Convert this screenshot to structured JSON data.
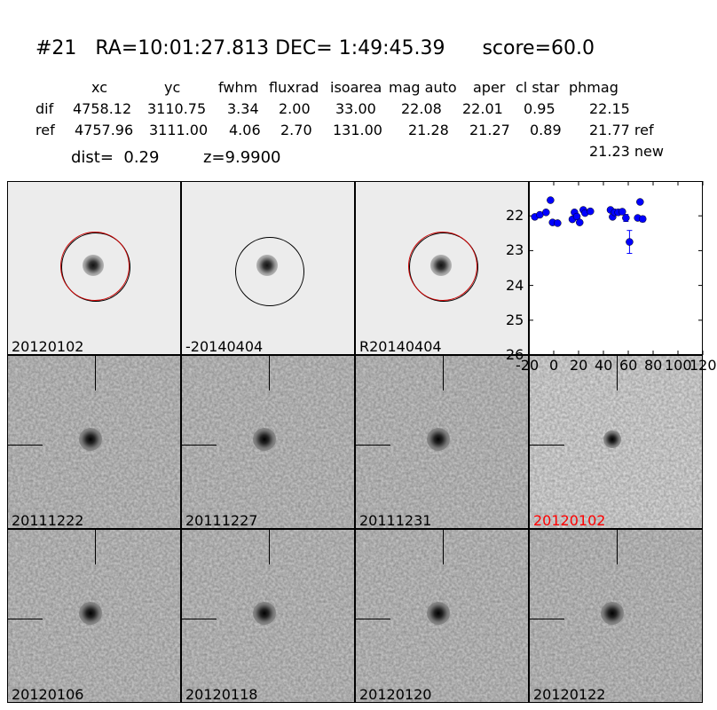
{
  "title": "#21   RA=10:01:27.813 DEC= 1:49:45.39      score=60.0",
  "table": {
    "headers": [
      "xc",
      "yc",
      "fwhm",
      "fluxrad",
      "isoarea",
      "mag auto",
      "aper",
      "cl star",
      "phmag"
    ],
    "dif": {
      "label": "dif",
      "values": [
        "4758.12",
        "3110.75",
        "3.34",
        "2.00",
        "33.00",
        "22.08",
        "22.01",
        "0.95",
        "22.15"
      ]
    },
    "ref": {
      "label": "ref",
      "values": [
        "4757.96",
        "3111.00",
        "4.06",
        "2.70",
        "131.00",
        "21.28",
        "21.27",
        "0.89",
        "21.77 ref"
      ]
    },
    "new_phmag": "21.23 new"
  },
  "dist": "dist=  0.29",
  "z": "z=9.9900",
  "top_panels": [
    {
      "label": "20120102",
      "circle": "red"
    },
    {
      "label": "-20140404",
      "circle": "black"
    },
    {
      "label": "R20140404",
      "circle": "red"
    }
  ],
  "epoch_panels": [
    {
      "label": "20111222",
      "highlight": false
    },
    {
      "label": "20111227",
      "highlight": false
    },
    {
      "label": "20111231",
      "highlight": false
    },
    {
      "label": "20120102",
      "highlight": true
    },
    {
      "label": "20120106",
      "highlight": false
    },
    {
      "label": "20120118",
      "highlight": false
    },
    {
      "label": "20120120",
      "highlight": false
    },
    {
      "label": "20120122",
      "highlight": false
    }
  ],
  "colors": {
    "highlight": "#ff0000",
    "points": "#0000ff",
    "circle_red": "#cc0000"
  },
  "chart_data": {
    "type": "scatter",
    "xlim": [
      -20,
      120
    ],
    "ylim": [
      26,
      21
    ],
    "y_inverted": true,
    "xticks": [
      "-20",
      "0",
      "20",
      "40",
      "60",
      "80",
      "100",
      "120"
    ],
    "yticks": [
      "22",
      "23",
      "24",
      "25",
      "26"
    ],
    "x": [
      -15.2,
      -11.2,
      -6.2,
      -2.6,
      -0.9,
      3.1,
      15,
      16.7,
      18.6,
      20.9,
      23.8,
      25.2,
      29.5,
      45.7,
      47.4,
      49,
      51.9,
      55.2,
      58.1,
      61,
      67.6,
      69.5,
      71.6
    ],
    "y": [
      22.03,
      21.97,
      21.9,
      21.55,
      22.19,
      22.21,
      22.1,
      21.9,
      22.02,
      22.19,
      21.83,
      21.92,
      21.87,
      21.83,
      22.03,
      21.9,
      21.9,
      21.88,
      22.06,
      22.75,
      22.06,
      21.6,
      22.09
    ],
    "yerr": [
      0.05,
      0.04,
      0.05,
      0.03,
      0.04,
      0.04,
      0.04,
      0.04,
      0.04,
      0.04,
      0.04,
      0.04,
      0.04,
      0.06,
      0.05,
      0.04,
      0.04,
      0.06,
      0.1,
      0.33,
      0.05,
      0.04,
      0.08
    ]
  }
}
